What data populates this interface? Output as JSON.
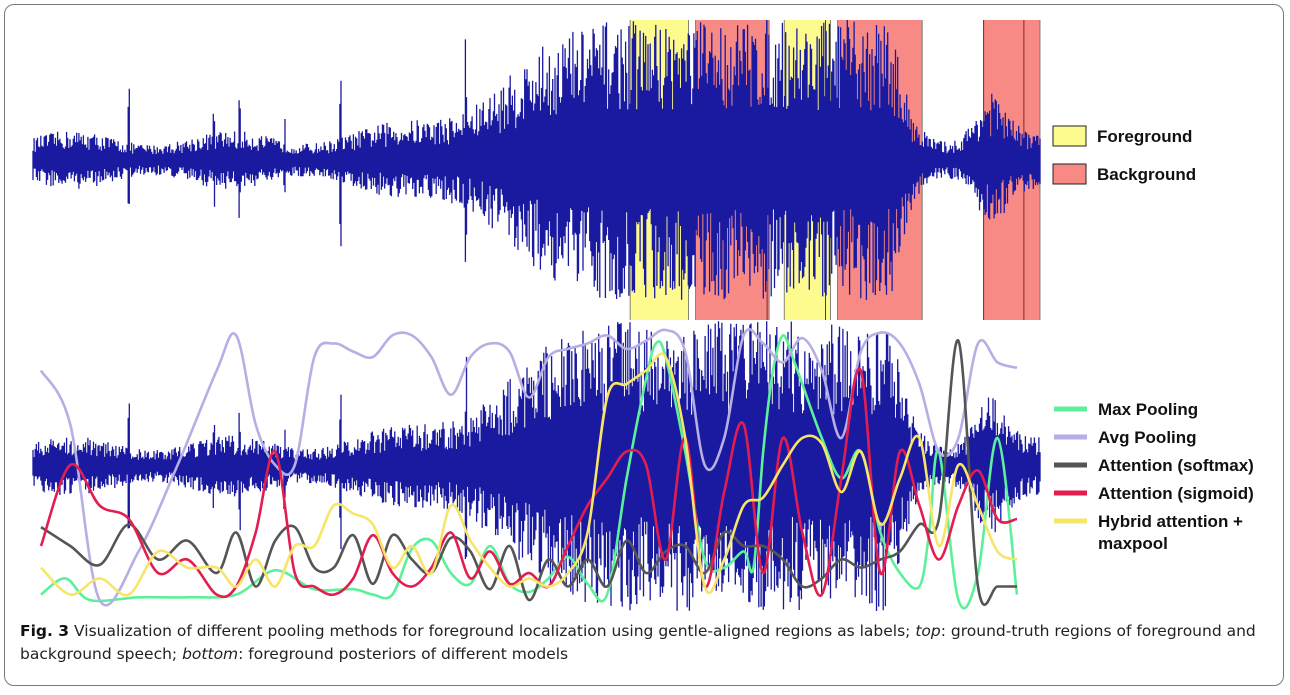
{
  "figure": {
    "caption_label": "Fig. 3",
    "caption_text_1": " Visualization of different pooling methods for foreground localization using gentle-aligned regions as labels; ",
    "caption_top_word": "top",
    "caption_text_2": ": ground-truth regions of foreground and background speech; ",
    "caption_bottom_word": "bottom",
    "caption_text_3": ": foreground posteriors of different models"
  },
  "chart_data": [
    {
      "type": "area",
      "panel": "top",
      "waveform_color": "#1a1aa0",
      "legend": [
        {
          "label": "Foreground",
          "color": "#fdfb8e"
        },
        {
          "label": "Background",
          "color": "#f88a86"
        }
      ],
      "regions": [
        {
          "label": "Foreground",
          "x_start": 0.593,
          "x_end": 0.651
        },
        {
          "label": "Background",
          "x_start": 0.658,
          "x_end": 0.731
        },
        {
          "label": "Foreground",
          "x_start": 0.746,
          "x_end": 0.792
        },
        {
          "label": "Background",
          "x_start": 0.799,
          "x_end": 0.883
        },
        {
          "label": "Background",
          "x_start": 0.944,
          "x_end": 1.0
        }
      ],
      "region_edge_marks": [
        0.729,
        0.787,
        0.944,
        0.984
      ],
      "x_range": [
        0,
        1
      ]
    },
    {
      "type": "line",
      "panel": "bottom",
      "x_range": [
        0,
        1
      ],
      "y_range": [
        0,
        1
      ],
      "series": [
        {
          "name": "Max Pooling",
          "color": "#5df09a",
          "x": [
            0.0,
            0.025,
            0.05,
            0.1,
            0.15,
            0.2,
            0.24,
            0.28,
            0.32,
            0.34,
            0.36,
            0.38,
            0.4,
            0.42,
            0.44,
            0.46,
            0.48,
            0.5,
            0.52,
            0.54,
            0.56,
            0.58,
            0.6,
            0.62,
            0.63,
            0.64,
            0.66,
            0.68,
            0.7,
            0.72,
            0.73,
            0.74,
            0.75,
            0.76,
            0.77,
            0.78,
            0.8,
            0.82,
            0.84,
            0.86,
            0.88,
            0.9,
            0.91,
            0.92,
            0.94,
            0.96,
            0.98,
            1.0
          ],
          "y": [
            0.02,
            0.08,
            0.0,
            0.01,
            0.01,
            0.02,
            0.11,
            0.04,
            0.04,
            0.02,
            0.02,
            0.19,
            0.22,
            0.1,
            0.06,
            0.2,
            0.06,
            0.03,
            0.08,
            0.16,
            0.06,
            0.02,
            0.45,
            0.82,
            0.95,
            0.9,
            0.55,
            0.15,
            0.12,
            0.18,
            0.12,
            0.55,
            0.85,
            0.98,
            0.9,
            0.8,
            0.6,
            0.45,
            0.55,
            0.25,
            0.1,
            0.05,
            0.25,
            0.55,
            0.0,
            0.1,
            0.6,
            0.02
          ]
        },
        {
          "name": "Avg Pooling",
          "color": "#b6aee4",
          "x": [
            0.0,
            0.03,
            0.06,
            0.1,
            0.14,
            0.18,
            0.2,
            0.22,
            0.24,
            0.26,
            0.28,
            0.3,
            0.32,
            0.34,
            0.36,
            0.38,
            0.4,
            0.42,
            0.44,
            0.46,
            0.48,
            0.5,
            0.52,
            0.54,
            0.56,
            0.58,
            0.6,
            0.62,
            0.64,
            0.66,
            0.68,
            0.7,
            0.72,
            0.74,
            0.76,
            0.78,
            0.8,
            0.82,
            0.84,
            0.86,
            0.88,
            0.9,
            0.92,
            0.94,
            0.96,
            0.98,
            1.0
          ],
          "y": [
            0.85,
            0.65,
            0.0,
            0.18,
            0.5,
            0.85,
            0.98,
            0.65,
            0.5,
            0.5,
            0.9,
            0.95,
            0.92,
            0.9,
            0.98,
            0.98,
            0.9,
            0.76,
            0.9,
            0.95,
            0.92,
            0.75,
            0.9,
            0.93,
            0.95,
            0.98,
            0.93,
            0.96,
            1.0,
            0.92,
            0.5,
            0.6,
            0.98,
            0.95,
            0.88,
            0.97,
            0.85,
            0.6,
            0.92,
            0.99,
            0.95,
            0.8,
            0.55,
            0.6,
            0.95,
            0.88,
            0.86
          ]
        },
        {
          "name": "Attention (softmax)",
          "color": "#555555",
          "x": [
            0.0,
            0.03,
            0.06,
            0.09,
            0.12,
            0.15,
            0.18,
            0.2,
            0.22,
            0.24,
            0.26,
            0.28,
            0.3,
            0.32,
            0.34,
            0.36,
            0.38,
            0.4,
            0.42,
            0.44,
            0.46,
            0.48,
            0.5,
            0.52,
            0.54,
            0.56,
            0.58,
            0.6,
            0.62,
            0.64,
            0.66,
            0.68,
            0.7,
            0.72,
            0.74,
            0.76,
            0.78,
            0.8,
            0.82,
            0.84,
            0.86,
            0.88,
            0.9,
            0.92,
            0.94,
            0.96,
            0.98,
            1.0
          ],
          "y": [
            0.27,
            0.2,
            0.13,
            0.28,
            0.15,
            0.22,
            0.1,
            0.25,
            0.05,
            0.22,
            0.27,
            0.12,
            0.12,
            0.24,
            0.06,
            0.24,
            0.15,
            0.1,
            0.23,
            0.18,
            0.04,
            0.2,
            0.0,
            0.15,
            0.05,
            0.15,
            0.05,
            0.22,
            0.1,
            0.18,
            0.2,
            0.1,
            0.25,
            0.2,
            0.2,
            0.15,
            0.05,
            0.08,
            0.15,
            0.12,
            0.15,
            0.18,
            0.28,
            0.3,
            0.96,
            0.05,
            0.05,
            0.05
          ]
        },
        {
          "name": "Attention (sigmoid)",
          "color": "#e31d50",
          "x": [
            0.0,
            0.03,
            0.06,
            0.09,
            0.12,
            0.15,
            0.18,
            0.2,
            0.22,
            0.24,
            0.26,
            0.28,
            0.3,
            0.32,
            0.34,
            0.36,
            0.38,
            0.4,
            0.42,
            0.44,
            0.46,
            0.48,
            0.5,
            0.52,
            0.54,
            0.56,
            0.58,
            0.6,
            0.62,
            0.64,
            0.66,
            0.68,
            0.7,
            0.72,
            0.74,
            0.76,
            0.78,
            0.8,
            0.82,
            0.84,
            0.86,
            0.88,
            0.9,
            0.92,
            0.94,
            0.96,
            0.98,
            1.0
          ],
          "y": [
            0.2,
            0.5,
            0.35,
            0.3,
            0.1,
            0.15,
            0.02,
            0.05,
            0.25,
            0.55,
            0.1,
            0.05,
            0.02,
            0.08,
            0.24,
            0.1,
            0.05,
            0.12,
            0.25,
            0.08,
            0.18,
            0.06,
            0.1,
            0.05,
            0.2,
            0.35,
            0.45,
            0.55,
            0.5,
            0.15,
            0.6,
            0.05,
            0.4,
            0.65,
            0.1,
            0.6,
            0.25,
            0.02,
            0.45,
            0.85,
            0.1,
            0.55,
            0.35,
            0.15,
            0.35,
            0.48,
            0.3,
            0.3
          ]
        },
        {
          "name": "Hybrid attention + maxpool",
          "color": "#f7e56a",
          "x": [
            0.0,
            0.03,
            0.06,
            0.09,
            0.12,
            0.15,
            0.18,
            0.2,
            0.22,
            0.24,
            0.26,
            0.28,
            0.3,
            0.32,
            0.34,
            0.36,
            0.38,
            0.4,
            0.42,
            0.44,
            0.46,
            0.48,
            0.5,
            0.52,
            0.54,
            0.56,
            0.58,
            0.6,
            0.62,
            0.64,
            0.66,
            0.68,
            0.7,
            0.72,
            0.74,
            0.76,
            0.78,
            0.8,
            0.82,
            0.84,
            0.86,
            0.88,
            0.9,
            0.92,
            0.94,
            0.96,
            0.98,
            1.0
          ],
          "y": [
            0.12,
            0.02,
            0.08,
            0.02,
            0.18,
            0.12,
            0.12,
            0.05,
            0.15,
            0.05,
            0.2,
            0.2,
            0.35,
            0.32,
            0.28,
            0.12,
            0.2,
            0.1,
            0.35,
            0.22,
            0.12,
            0.05,
            0.08,
            0.05,
            0.1,
            0.25,
            0.75,
            0.8,
            0.85,
            0.9,
            0.6,
            0.05,
            0.15,
            0.35,
            0.38,
            0.5,
            0.6,
            0.58,
            0.4,
            0.55,
            0.28,
            0.45,
            0.6,
            0.2,
            0.5,
            0.35,
            0.18,
            0.15
          ]
        }
      ]
    }
  ]
}
